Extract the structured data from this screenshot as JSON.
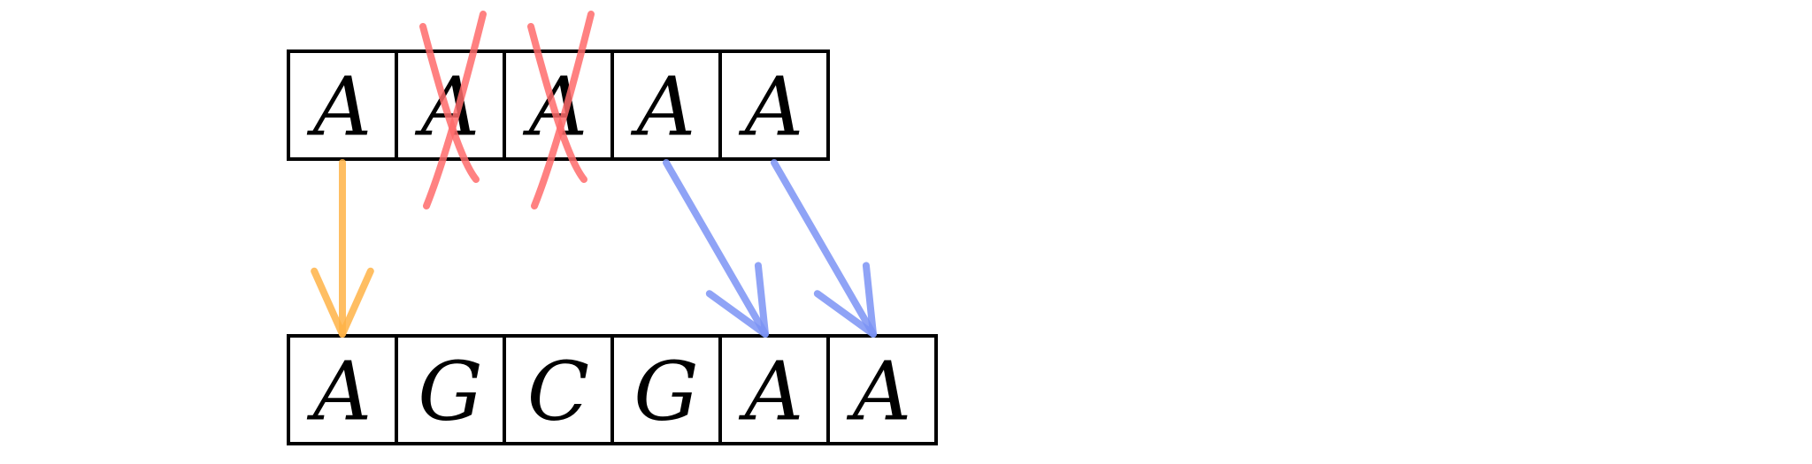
{
  "diagram": {
    "top_row": {
      "cells": [
        {
          "letter": "A",
          "crossed": false
        },
        {
          "letter": "A",
          "crossed": true
        },
        {
          "letter": "A",
          "crossed": true
        },
        {
          "letter": "A",
          "crossed": false
        },
        {
          "letter": "A",
          "crossed": false
        }
      ]
    },
    "bottom_row": {
      "cells": [
        {
          "letter": "A"
        },
        {
          "letter": "G"
        },
        {
          "letter": "C"
        },
        {
          "letter": "G"
        },
        {
          "letter": "A"
        },
        {
          "letter": "A"
        }
      ],
      "highlighted_cells": [
        1,
        2,
        3
      ]
    },
    "mappings": [
      {
        "from": 0,
        "to": 0,
        "color": "#ffb347"
      },
      {
        "from": 3,
        "to": 4,
        "color": "#7b93f5"
      },
      {
        "from": 4,
        "to": 5,
        "color": "#7b93f5"
      }
    ],
    "colors": {
      "cell_border": "#000000",
      "letter": "#000000",
      "cross": "#ff6b6b",
      "match_arrow": "#ffb347",
      "shift_arrow": "#7b93f5",
      "highlight": "#5fd3e0"
    }
  }
}
